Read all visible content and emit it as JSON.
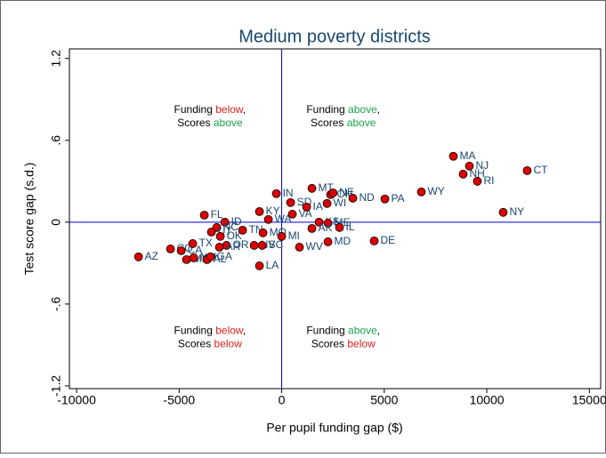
{
  "chart_data": {
    "type": "scatter",
    "title": "Medium poverty districts",
    "x_label": "Per pupil funding gap ($)",
    "y_label": "Test score gap (s.d.)",
    "xlim": [
      -10350,
      15550
    ],
    "ylim": [
      -1.22,
      1.27
    ],
    "xticks": [
      -10000,
      -5000,
      0,
      5000,
      10000,
      15000
    ],
    "yticks": [
      -1.2,
      {
        "value": -0.6,
        "label": "-.6"
      },
      0,
      {
        "value": 0.6,
        "label": ".6"
      },
      1.2
    ],
    "xline": 0,
    "yline": 0,
    "line_color": "#0000cc",
    "color": "#dd0000",
    "label_color": "#1a476f",
    "labels": [
      "AZ",
      "CO",
      "CA",
      "TX",
      "MS",
      "NM",
      "AL",
      "GA",
      "FL",
      "ID",
      "NC",
      "UT",
      "OK",
      "OR",
      "AR",
      "TN",
      "KY",
      "WA",
      "MO",
      "NV",
      "SC",
      "LA",
      "MI",
      "WV",
      "IN",
      "SD",
      "MT",
      "VA",
      "IA",
      "OH",
      "NE",
      "WI",
      "ND",
      "PA",
      "WY",
      "KS",
      "ME",
      "IL",
      "AK",
      "MD",
      "DE",
      "MA",
      "NJ",
      "NH",
      "RI",
      "CT",
      "NY"
    ],
    "x": [
      -6982,
      -5421,
      -4900,
      -4337,
      -4640,
      -4293,
      -3643,
      -3469,
      -3773,
      -2775,
      -3166,
      -3426,
      -2992,
      -2689,
      -3036,
      -1908,
      -1084,
      -650,
      -911,
      -1344,
      -954,
      -1084,
      0,
      867,
      -260,
      434,
      1474,
      520,
      1214,
      2385,
      2500,
      2212,
      3469,
      5030,
      6808,
      1821,
      2255,
      2819,
      1474,
      2255,
      4510,
      8369,
      9150,
      8846,
      9540,
      11969,
      10798
    ],
    "y": [
      -0.254,
      -0.196,
      -0.209,
      -0.157,
      -0.274,
      -0.261,
      -0.274,
      -0.254,
      0.052,
      0,
      -0.039,
      -0.072,
      -0.104,
      -0.17,
      -0.183,
      -0.059,
      0.078,
      0.02,
      -0.078,
      -0.17,
      -0.17,
      -0.32,
      -0.104,
      -0.183,
      0.209,
      0.144,
      0.248,
      0.059,
      0.111,
      0.202,
      0.215,
      0.137,
      0.176,
      0.17,
      0.222,
      0,
      -0.007,
      -0.039,
      -0.046,
      -0.144,
      -0.137,
      0.483,
      0.411,
      0.352,
      0.3,
      0.378,
      0.072
    ],
    "annotations": [
      {
        "x": -3500,
        "y": 0.82,
        "lines": [
          [
            {
              "text": "Funding "
            },
            {
              "text": "below",
              "color": "#e0201b"
            },
            {
              "text": ","
            }
          ],
          [
            {
              "text": "Scores "
            },
            {
              "text": "above",
              "color": "#1aa34a"
            }
          ]
        ]
      },
      {
        "x": 3000,
        "y": 0.82,
        "lines": [
          [
            {
              "text": "Funding "
            },
            {
              "text": "above",
              "color": "#1aa34a"
            },
            {
              "text": ","
            }
          ],
          [
            {
              "text": "Scores "
            },
            {
              "text": "above",
              "color": "#1aa34a"
            }
          ]
        ]
      },
      {
        "x": -3500,
        "y": -0.8,
        "lines": [
          [
            {
              "text": "Funding "
            },
            {
              "text": "below",
              "color": "#e0201b"
            },
            {
              "text": ","
            }
          ],
          [
            {
              "text": "Scores "
            },
            {
              "text": "below",
              "color": "#e0201b"
            }
          ]
        ]
      },
      {
        "x": 3000,
        "y": -0.8,
        "lines": [
          [
            {
              "text": "Funding "
            },
            {
              "text": "above",
              "color": "#1aa34a"
            },
            {
              "text": ","
            }
          ],
          [
            {
              "text": "Scores "
            },
            {
              "text": "below",
              "color": "#e0201b"
            }
          ]
        ]
      }
    ]
  }
}
